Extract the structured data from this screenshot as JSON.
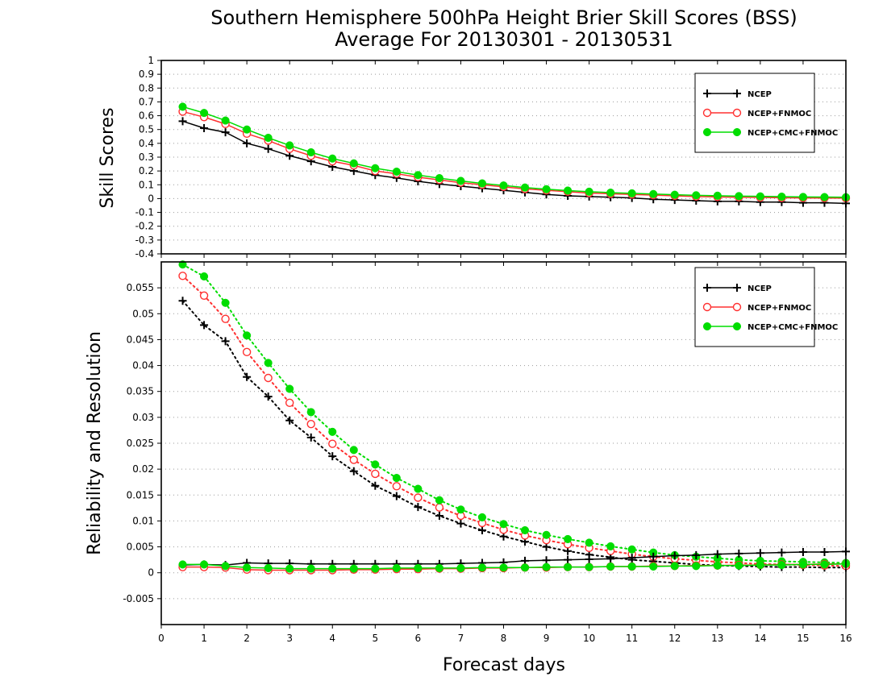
{
  "title": [
    "Southern Hemisphere 500hPa Height Brier Skill Scores (BSS)",
    "Average For 20130301 - 20130531"
  ],
  "xlabel": "Forecast days",
  "colors": {
    "NCEP": "#000000",
    "NCEP+FNMOC": "#ff3030",
    "NCEP+CMC+FNMOC": "#00dd00"
  },
  "chart_data": [
    {
      "type": "line",
      "panel": "top",
      "ylabel": "Skill Scores",
      "xlim": [
        0,
        16
      ],
      "ylim": [
        -0.4,
        1
      ],
      "x_ticks": [
        "0",
        "1",
        "2",
        "3",
        "4",
        "5",
        "6",
        "7",
        "8",
        "9",
        "10",
        "11",
        "12",
        "13",
        "14",
        "15",
        "16"
      ],
      "y_ticks": [
        "-0.4",
        "-0.3",
        "-0.2",
        "-0.1",
        "0",
        "0.1",
        "0.2",
        "0.3",
        "0.4",
        "0.5",
        "0.6",
        "0.7",
        "0.8",
        "0.9",
        "1"
      ],
      "grid": "horizontal dotted",
      "legend_position": "top-right",
      "x": [
        0.5,
        1,
        1.5,
        2,
        2.5,
        3,
        3.5,
        4,
        4.5,
        5,
        5.5,
        6,
        6.5,
        7,
        7.5,
        8,
        8.5,
        9,
        9.5,
        10,
        10.5,
        11,
        11.5,
        12,
        12.5,
        13,
        13.5,
        14,
        14.5,
        15,
        15.5,
        16
      ],
      "series": [
        {
          "name": "NCEP",
          "marker": "plus",
          "line": "solid",
          "values": [
            0.56,
            0.51,
            0.48,
            0.4,
            0.36,
            0.31,
            0.27,
            0.23,
            0.2,
            0.17,
            0.15,
            0.125,
            0.105,
            0.09,
            0.075,
            0.06,
            0.045,
            0.03,
            0.02,
            0.015,
            0.01,
            0.005,
            -0.005,
            -0.01,
            -0.015,
            -0.02,
            -0.02,
            -0.025,
            -0.025,
            -0.03,
            -0.03,
            -0.035
          ]
        },
        {
          "name": "NCEP+FNMOC",
          "marker": "open-circle",
          "line": "solid",
          "values": [
            0.63,
            0.59,
            0.54,
            0.47,
            0.42,
            0.36,
            0.31,
            0.27,
            0.24,
            0.2,
            0.18,
            0.155,
            0.135,
            0.115,
            0.1,
            0.085,
            0.07,
            0.06,
            0.05,
            0.04,
            0.035,
            0.03,
            0.025,
            0.02,
            0.015,
            0.012,
            0.01,
            0.008,
            0.006,
            0.005,
            0.004,
            0.003
          ]
        },
        {
          "name": "NCEP+CMC+FNMOC",
          "marker": "filled-circle",
          "line": "solid",
          "values": [
            0.665,
            0.62,
            0.565,
            0.5,
            0.44,
            0.385,
            0.335,
            0.29,
            0.255,
            0.22,
            0.195,
            0.17,
            0.148,
            0.128,
            0.11,
            0.095,
            0.08,
            0.068,
            0.058,
            0.05,
            0.043,
            0.038,
            0.033,
            0.028,
            0.024,
            0.021,
            0.018,
            0.016,
            0.014,
            0.012,
            0.011,
            0.01
          ]
        }
      ]
    },
    {
      "type": "line",
      "panel": "bottom",
      "ylabel": "Reliability and Resolution",
      "xlim": [
        0,
        16
      ],
      "ylim": [
        -0.01,
        0.06
      ],
      "x_ticks": [
        "0",
        "1",
        "2",
        "3",
        "4",
        "5",
        "6",
        "7",
        "8",
        "9",
        "10",
        "11",
        "12",
        "13",
        "14",
        "15",
        "16"
      ],
      "y_ticks": [
        "-0.005",
        "0",
        "0.005",
        "0.01",
        "0.015",
        "0.02",
        "0.025",
        "0.03",
        "0.035",
        "0.04",
        "0.045",
        "0.05",
        "0.055"
      ],
      "grid": "horizontal dotted",
      "legend_position": "top-right",
      "x": [
        0.5,
        1,
        1.5,
        2,
        2.5,
        3,
        3.5,
        4,
        4.5,
        5,
        5.5,
        6,
        6.5,
        7,
        7.5,
        8,
        8.5,
        9,
        9.5,
        10,
        10.5,
        11,
        11.5,
        12,
        12.5,
        13,
        13.5,
        14,
        14.5,
        15,
        15.5,
        16
      ],
      "series": [
        {
          "name": "NCEP",
          "group": "resolution",
          "marker": "plus",
          "line": "dotted",
          "values": [
            0.0525,
            0.0478,
            0.0447,
            0.0378,
            0.034,
            0.0294,
            0.0261,
            0.0225,
            0.0196,
            0.0168,
            0.0148,
            0.0127,
            0.011,
            0.0095,
            0.0082,
            0.007,
            0.006,
            0.005,
            0.0042,
            0.0035,
            0.003,
            0.0025,
            0.0022,
            0.0019,
            0.0016,
            0.0014,
            0.0013,
            0.0012,
            0.0011,
            0.0011,
            0.001,
            0.001
          ]
        },
        {
          "name": "NCEP+FNMOC",
          "group": "resolution",
          "marker": "open-circle",
          "line": "dotted",
          "values": [
            0.0573,
            0.0535,
            0.049,
            0.0426,
            0.0376,
            0.0328,
            0.0287,
            0.0249,
            0.0218,
            0.0191,
            0.0167,
            0.0145,
            0.0126,
            0.011,
            0.0096,
            0.0083,
            0.0072,
            0.0063,
            0.0055,
            0.0048,
            0.0042,
            0.0036,
            0.0031,
            0.0027,
            0.0024,
            0.0021,
            0.0019,
            0.0017,
            0.0016,
            0.0015,
            0.0014,
            0.0013
          ]
        },
        {
          "name": "NCEP+CMC+FNMOC",
          "group": "resolution",
          "marker": "filled-circle",
          "line": "dotted",
          "values": [
            0.0595,
            0.0572,
            0.0521,
            0.0458,
            0.0405,
            0.0355,
            0.031,
            0.0272,
            0.0237,
            0.0209,
            0.0183,
            0.0162,
            0.014,
            0.0122,
            0.0107,
            0.0094,
            0.0082,
            0.0073,
            0.0065,
            0.0058,
            0.0051,
            0.0045,
            0.0039,
            0.0034,
            0.0031,
            0.0028,
            0.0025,
            0.0023,
            0.0022,
            0.0021,
            0.002,
            0.0019
          ]
        },
        {
          "name": "NCEP",
          "group": "reliability",
          "marker": "plus",
          "line": "solid",
          "values": [
            0.0015,
            0.0016,
            0.0015,
            0.0019,
            0.0018,
            0.0018,
            0.0017,
            0.0017,
            0.0017,
            0.0017,
            0.0017,
            0.0017,
            0.0017,
            0.0018,
            0.0019,
            0.002,
            0.0023,
            0.0024,
            0.0025,
            0.0026,
            0.0027,
            0.0029,
            0.0031,
            0.0033,
            0.0034,
            0.0036,
            0.0037,
            0.0038,
            0.0039,
            0.004,
            0.004,
            0.0041
          ]
        },
        {
          "name": "NCEP+FNMOC",
          "group": "reliability",
          "marker": "open-circle",
          "line": "solid",
          "values": [
            0.0011,
            0.0011,
            0.001,
            0.0006,
            0.0005,
            0.0005,
            0.0005,
            0.0005,
            0.0006,
            0.0006,
            0.0007,
            0.0007,
            0.0008,
            0.0008,
            0.0009,
            0.0009,
            0.001,
            0.001,
            0.0011,
            0.0011,
            0.0012,
            0.0012,
            0.0013,
            0.0013,
            0.0014,
            0.0014,
            0.0015,
            0.0015,
            0.0016,
            0.0016,
            0.0017,
            0.0017
          ]
        },
        {
          "name": "NCEP+CMC+FNMOC",
          "group": "reliability",
          "marker": "filled-circle",
          "line": "solid",
          "values": [
            0.0016,
            0.0016,
            0.0013,
            0.001,
            0.0009,
            0.0008,
            0.0008,
            0.0008,
            0.0008,
            0.0008,
            0.0009,
            0.0009,
            0.0009,
            0.0009,
            0.001,
            0.001,
            0.001,
            0.0011,
            0.0011,
            0.0011,
            0.0012,
            0.0012,
            0.0012,
            0.0013,
            0.0013,
            0.0014,
            0.0014,
            0.0015,
            0.0015,
            0.0016,
            0.0016,
            0.0017
          ]
        }
      ]
    }
  ]
}
